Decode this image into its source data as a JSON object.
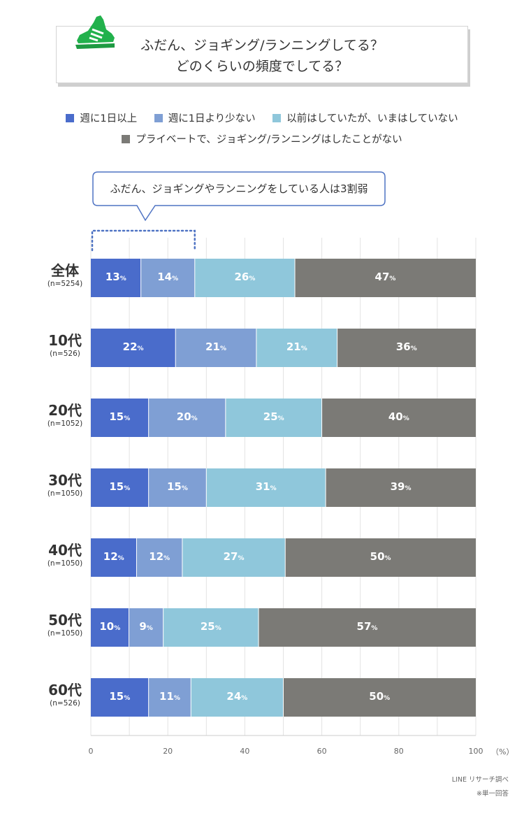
{
  "title": {
    "line1": "ふだん、ジョギング/ランニングしてる？",
    "line2": "どのくらいの頻度でしてる？",
    "icon": "running-shoe-icon",
    "icon_color": "#22b14c"
  },
  "legend": [
    {
      "label": "週に1日以上",
      "color": "#4a6ccb"
    },
    {
      "label": "週に1日より少ない",
      "color": "#7f9fd4"
    },
    {
      "label": "以前はしていたが、いまはしていない",
      "color": "#8fc7db"
    },
    {
      "label": "プライベートで、ジョギング/ランニングはしたことがない",
      "color": "#7b7a76"
    }
  ],
  "callout": {
    "text": "ふだん、ジョギングやランニングをしている人は3割弱",
    "border_color": "#4f73c3"
  },
  "chart_data": {
    "type": "bar",
    "orientation": "horizontal-stacked-100",
    "categories": [
      {
        "name": "全体",
        "n": "(n=5254)"
      },
      {
        "name": "10代",
        "n": "(n=526)"
      },
      {
        "name": "20代",
        "n": "(n=1052)"
      },
      {
        "name": "30代",
        "n": "(n=1050)"
      },
      {
        "name": "40代",
        "n": "(n=1050)"
      },
      {
        "name": "50代",
        "n": "(n=1050)"
      },
      {
        "name": "60代",
        "n": "(n=526)"
      }
    ],
    "series": [
      {
        "name": "週に1日以上",
        "values": [
          13,
          22,
          15,
          15,
          12,
          10,
          15
        ]
      },
      {
        "name": "週に1日より少ない",
        "values": [
          14,
          21,
          20,
          15,
          12,
          9,
          11
        ]
      },
      {
        "name": "以前はしていたが、いまはしていない",
        "values": [
          26,
          21,
          25,
          31,
          27,
          25,
          24
        ]
      },
      {
        "name": "プライベートで、ジョギング/ランニングはしたことがない",
        "values": [
          47,
          36,
          40,
          39,
          50,
          57,
          50
        ]
      }
    ],
    "value_suffix": "%",
    "xlim": [
      0,
      100
    ],
    "xticks": [
      "0",
      "20",
      "40",
      "60",
      "80",
      "100"
    ],
    "xunit": "（%）",
    "grid": true
  },
  "source": {
    "line1": "LINE リサーチ調べ",
    "line2": "※単一回答"
  }
}
